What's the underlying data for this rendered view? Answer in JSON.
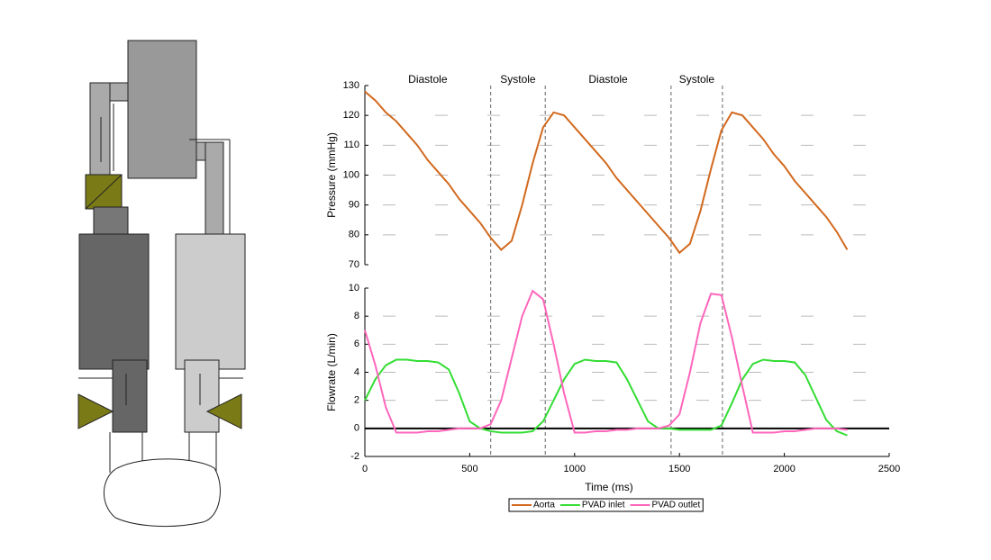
{
  "chart_data": [
    {
      "type": "line",
      "ylabel": "Pressure (mmHg)",
      "annotations": [
        "Diastole",
        "Systole",
        "Diastole",
        "Systole"
      ],
      "phase_lines": [
        600,
        860,
        1460,
        1705
      ],
      "x": [
        0,
        50,
        100,
        150,
        200,
        250,
        300,
        350,
        400,
        450,
        500,
        550,
        600,
        650,
        700,
        750,
        800,
        850,
        900,
        950,
        1000,
        1050,
        1100,
        1150,
        1200,
        1250,
        1300,
        1350,
        1400,
        1450,
        1500,
        1550,
        1600,
        1650,
        1700,
        1750,
        1800,
        1850,
        1900,
        1950,
        2000,
        2050,
        2100,
        2150,
        2200,
        2250,
        2300
      ],
      "series": [
        {
          "name": "Aorta",
          "color": "#d2691e",
          "values": [
            128,
            125,
            121,
            118,
            114,
            110,
            105,
            101,
            97,
            92,
            88,
            84,
            79,
            75,
            78,
            90,
            104,
            116,
            121,
            120,
            116,
            112,
            108,
            104,
            99,
            95,
            91,
            87,
            83,
            79,
            74,
            77,
            88,
            102,
            115,
            121,
            120,
            116,
            112,
            107,
            103,
            98,
            94,
            90,
            86,
            81,
            75
          ]
        }
      ],
      "xlim": [
        0,
        2500
      ],
      "ylim": [
        70,
        130
      ],
      "yticks": [
        70,
        80,
        90,
        100,
        110,
        120,
        130
      ],
      "grid": true
    },
    {
      "type": "line",
      "ylabel": "Flowrate (L/min)",
      "xlabel": "Time (ms)",
      "x": [
        0,
        50,
        100,
        150,
        200,
        250,
        300,
        350,
        400,
        450,
        500,
        550,
        600,
        650,
        700,
        750,
        800,
        850,
        900,
        950,
        1000,
        1050,
        1100,
        1150,
        1200,
        1250,
        1300,
        1350,
        1400,
        1450,
        1500,
        1550,
        1600,
        1650,
        1700,
        1750,
        1800,
        1850,
        1900,
        1950,
        2000,
        2050,
        2100,
        2150,
        2200,
        2250,
        2300
      ],
      "series": [
        {
          "name": "PVAD inlet",
          "color": "#33dd33",
          "values": [
            2,
            3.5,
            4.5,
            4.9,
            4.9,
            4.8,
            4.8,
            4.7,
            4.2,
            2.5,
            0.5,
            0,
            -0.2,
            -0.3,
            -0.3,
            -0.3,
            -0.2,
            0.5,
            2,
            3.5,
            4.6,
            4.9,
            4.8,
            4.8,
            4.7,
            3.5,
            2,
            0.5,
            0,
            0,
            -0.1,
            -0.1,
            -0.1,
            -0.1,
            0.2,
            1.8,
            3.5,
            4.6,
            4.9,
            4.8,
            4.8,
            4.7,
            3.8,
            2.2,
            0.6,
            -0.2,
            -0.5
          ]
        },
        {
          "name": "PVAD outlet",
          "color": "#ff66bb",
          "values": [
            7,
            4.5,
            1.5,
            -0.3,
            -0.3,
            -0.3,
            -0.2,
            -0.2,
            -0.1,
            0,
            0,
            0,
            0.3,
            2,
            5,
            8,
            9.8,
            9.2,
            6,
            2.5,
            -0.3,
            -0.3,
            -0.2,
            -0.2,
            -0.1,
            -0.1,
            0,
            0,
            0,
            0.2,
            1,
            4,
            7.5,
            9.6,
            9.5,
            6.5,
            3,
            -0.3,
            -0.3,
            -0.3,
            -0.2,
            -0.2,
            -0.1,
            0,
            0,
            0,
            -0.1
          ]
        }
      ],
      "xlim": [
        0,
        2500
      ],
      "xticks": [
        0,
        500,
        1000,
        1500,
        2000,
        2500
      ],
      "ylim": [
        -2,
        10
      ],
      "yticks": [
        -2,
        0,
        2,
        4,
        6,
        8,
        10
      ],
      "grid": true
    }
  ]
}
